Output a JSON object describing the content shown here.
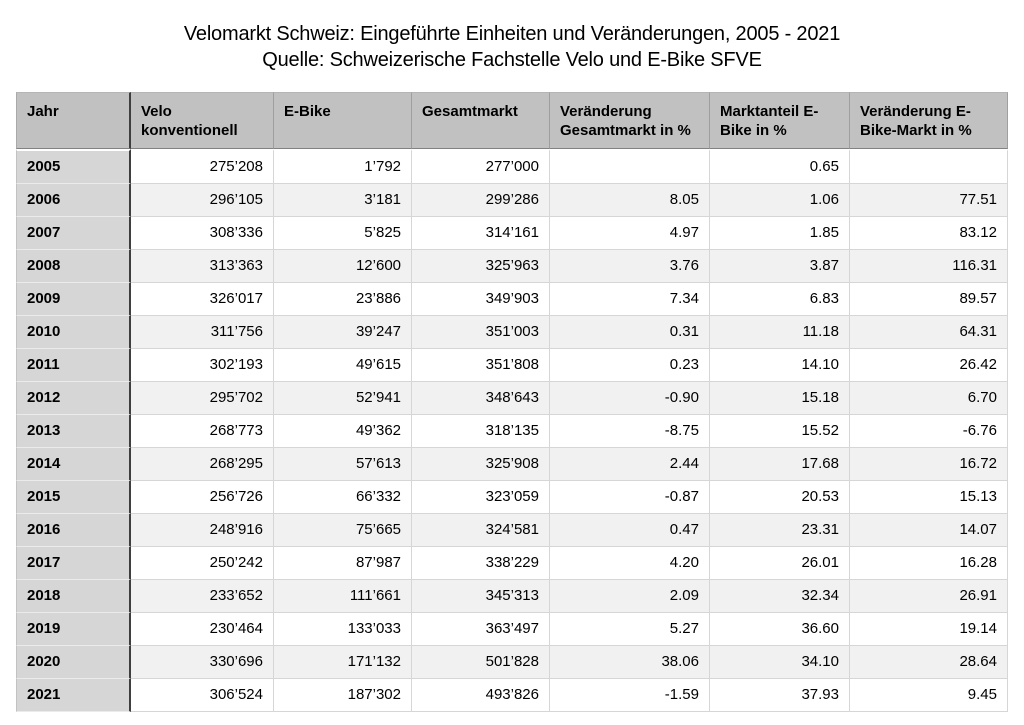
{
  "title": {
    "line1": "Velomarkt Schweiz: Eingeführte Einheiten und Veränderungen, 2005 - 2021",
    "line2": "Quelle: Schweizerische Fachstelle Velo und E-Bike SFVE"
  },
  "chart_data": {
    "type": "table",
    "title": "Velomarkt Schweiz: Eingeführte Einheiten und Veränderungen, 2005 - 2021",
    "source": "Quelle: Schweizerische Fachstelle Velo und E-Bike SFVE",
    "columns": [
      "Jahr",
      "Velo konventionell",
      "E-Bike",
      "Gesamtmarkt",
      "Veränderung Gesamtmarkt in %",
      "Marktanteil E-Bike in %",
      "Veränderung E-Bike-Markt in %"
    ],
    "rows": [
      [
        "2005",
        "275’208",
        "1’792",
        "277’000",
        "",
        "0.65",
        ""
      ],
      [
        "2006",
        "296’105",
        "3’181",
        "299’286",
        "8.05",
        "1.06",
        "77.51"
      ],
      [
        "2007",
        "308’336",
        "5’825",
        "314’161",
        "4.97",
        "1.85",
        "83.12"
      ],
      [
        "2008",
        "313’363",
        "12’600",
        "325’963",
        "3.76",
        "3.87",
        "116.31"
      ],
      [
        "2009",
        "326’017",
        "23’886",
        "349’903",
        "7.34",
        "6.83",
        "89.57"
      ],
      [
        "2010",
        "311’756",
        "39’247",
        "351’003",
        "0.31",
        "11.18",
        "64.31"
      ],
      [
        "2011",
        "302’193",
        "49’615",
        "351’808",
        "0.23",
        "14.10",
        "26.42"
      ],
      [
        "2012",
        "295’702",
        "52’941",
        "348’643",
        "-0.90",
        "15.18",
        "6.70"
      ],
      [
        "2013",
        "268’773",
        "49’362",
        "318’135",
        "-8.75",
        "15.52",
        "-6.76"
      ],
      [
        "2014",
        "268’295",
        "57’613",
        "325’908",
        "2.44",
        "17.68",
        "16.72"
      ],
      [
        "2015",
        "256’726",
        "66’332",
        "323’059",
        "-0.87",
        "20.53",
        "15.13"
      ],
      [
        "2016",
        "248’916",
        "75’665",
        "324’581",
        "0.47",
        "23.31",
        "14.07"
      ],
      [
        "2017",
        "250’242",
        "87’987",
        "338’229",
        "4.20",
        "26.01",
        "16.28"
      ],
      [
        "2018",
        "233’652",
        "111’661",
        "345’313",
        "2.09",
        "32.34",
        "26.91"
      ],
      [
        "2019",
        "230’464",
        "133’033",
        "363’497",
        "5.27",
        "36.60",
        "19.14"
      ],
      [
        "2020",
        "330’696",
        "171’132",
        "501’828",
        "38.06",
        "34.10",
        "28.64"
      ],
      [
        "2021",
        "306’524",
        "187’302",
        "493’826",
        "-1.59",
        "37.93",
        "9.45"
      ]
    ]
  },
  "colors": {
    "header_bg": "#c1c1c1",
    "year_column_bg": "#d6d6d6",
    "stripe_bg": "#f1f1f2",
    "cell_border": "#d6d6d6",
    "dark_divider": "#3e3e3e",
    "text": "#000000"
  }
}
